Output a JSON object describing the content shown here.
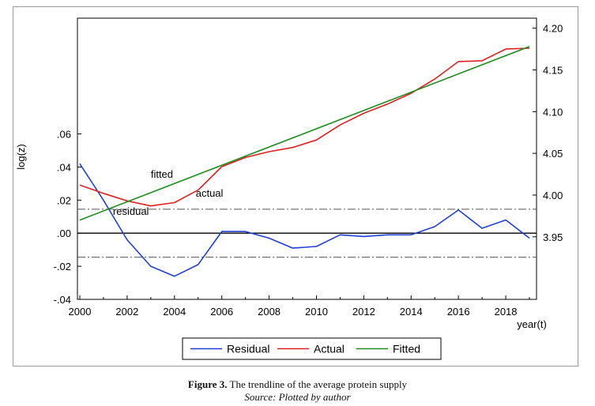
{
  "figure": {
    "caption_label": "Figure 3.",
    "caption_text": " The trendline of the average protein supply",
    "source": "Source: Plotted by author"
  },
  "chart_data": {
    "type": "line",
    "xlabel": "year(t)",
    "ylabel_left": "log(z)",
    "ylabel_right": "",
    "x_ticks": [
      2000,
      2002,
      2004,
      2006,
      2008,
      2010,
      2012,
      2014,
      2016,
      2018
    ],
    "xlim": [
      1999.9,
      2019.3
    ],
    "left_axis": {
      "range": [
        -0.04,
        0.13
      ],
      "ticks": [
        -0.04,
        -0.02,
        0.0,
        0.02,
        0.04,
        0.06
      ],
      "tick_labels": [
        "-.04",
        "-.02",
        ".00",
        ".02",
        ".04",
        ".06"
      ]
    },
    "right_axis": {
      "range": [
        3.875,
        4.212
      ],
      "ticks": [
        3.95,
        4.0,
        4.05,
        4.1,
        4.15,
        4.2
      ],
      "tick_labels": [
        "3.95",
        "4.00",
        "4.05",
        "4.10",
        "4.15",
        "4.20"
      ]
    },
    "bands": {
      "values": [
        0.0145,
        -0.0145
      ],
      "zero_line": 0
    },
    "series": [
      {
        "name": "Residual",
        "axis": "left",
        "color": "#1f3fd6",
        "x": [
          2000,
          2001,
          2002,
          2003,
          2004,
          2005,
          2006,
          2007,
          2008,
          2009,
          2010,
          2011,
          2012,
          2013,
          2014,
          2015,
          2016,
          2017,
          2018,
          2019
        ],
        "values": [
          0.042,
          0.02,
          -0.004,
          -0.02,
          -0.026,
          -0.019,
          0.001,
          0.001,
          -0.003,
          -0.009,
          -0.008,
          -0.001,
          -0.002,
          -0.001,
          -0.001,
          0.004,
          0.014,
          0.003,
          0.008,
          -0.003
        ]
      },
      {
        "name": "Actual",
        "axis": "right",
        "color": "#e02020",
        "x": [
          2000,
          2001,
          2002,
          2003,
          2004,
          2005,
          2006,
          2007,
          2008,
          2009,
          2010,
          2011,
          2012,
          2013,
          2014,
          2015,
          2016,
          2017,
          2018,
          2019
        ],
        "values": [
          4.012,
          4.002,
          3.993,
          3.987,
          3.991,
          4.006,
          4.034,
          4.045,
          4.052,
          4.057,
          4.066,
          4.084,
          4.098,
          4.109,
          4.122,
          4.139,
          4.16,
          4.161,
          4.175,
          4.176
        ]
      },
      {
        "name": "Fitted",
        "axis": "right",
        "color": "#1e8c1e",
        "x": [
          2000,
          2019
        ],
        "values": [
          3.97,
          4.178
        ]
      }
    ],
    "annotations": [
      {
        "text": "fitted",
        "x": 2003.0,
        "axis": "right",
        "y": 4.021
      },
      {
        "text": "actual",
        "x": 2004.9,
        "axis": "right",
        "y": 3.998
      },
      {
        "text": "residual",
        "x": 2001.4,
        "axis": "left",
        "y": 0.011
      }
    ],
    "legend": {
      "position": "bottom",
      "entries": [
        "Residual",
        "Actual",
        "Fitted"
      ]
    },
    "grid": false
  }
}
